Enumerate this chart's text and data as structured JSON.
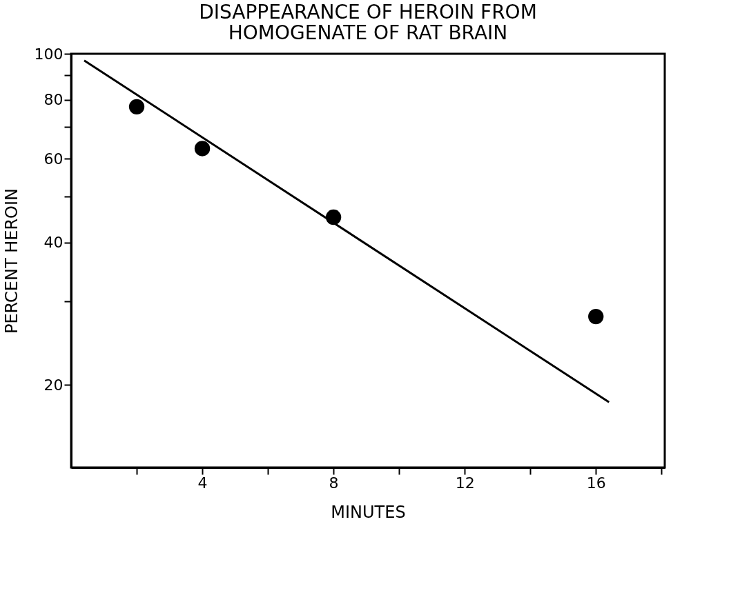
{
  "chart_data": {
    "type": "scatter",
    "title": "DISAPPEARANCE OF HEROIN FROM\nHOMOGENATE OF RAT BRAIN",
    "xlabel": "MINUTES",
    "ylabel": "PERCENT HEROIN",
    "log": "y",
    "grid": false,
    "marker": "circle",
    "xlim": [
      0,
      18.1
    ],
    "ylim": [
      13.4,
      100
    ],
    "xticks": [
      {
        "value": 2,
        "label": null
      },
      4,
      {
        "value": 6,
        "label": null
      },
      8,
      {
        "value": 10,
        "label": null
      },
      12,
      {
        "value": 14,
        "label": null
      },
      16,
      {
        "value": 18,
        "label": null
      }
    ],
    "yticks": [
      20,
      {
        "value": 30,
        "label": null
      },
      40,
      {
        "value": 50,
        "label": null
      },
      60,
      {
        "value": 70,
        "label": null
      },
      80,
      {
        "value": 90,
        "label": null
      },
      100
    ],
    "series": [
      {
        "type": "scatter",
        "color": "#000000",
        "x": [
          2,
          4,
          8,
          16
        ],
        "values": [
          77.3,
          63.1,
          45.2,
          27.9
        ]
      },
      {
        "type": "line",
        "color": "#000000",
        "line_style": "solid",
        "marker": "none",
        "x": [
          0.4,
          16.4
        ],
        "values": [
          96.8,
          18.4
        ]
      }
    ]
  }
}
